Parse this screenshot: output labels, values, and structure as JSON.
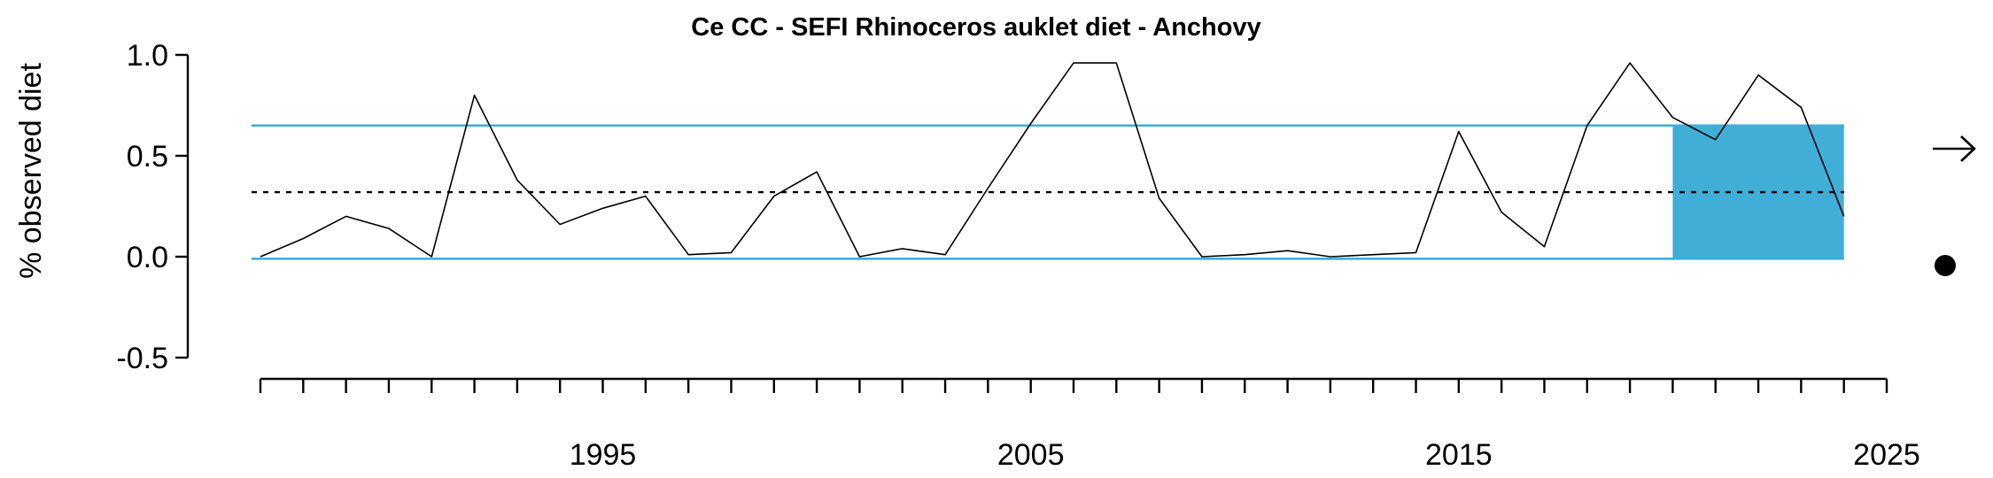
{
  "chart_data": {
    "type": "line",
    "title": "Ce CC - SEFI Rhinoceros auklet diet - Anchovy",
    "ylabel": "% observed diet",
    "xlabel": "",
    "ylim": [
      -0.5,
      1.0
    ],
    "xlim": [
      1987,
      2025
    ],
    "y_ticks": [
      1.0,
      0.5,
      0.0,
      -0.5
    ],
    "y_tick_labels": [
      "1.0",
      "0.5",
      "0.0",
      "-0.5"
    ],
    "x_major_ticks": [
      1995,
      2005,
      2015,
      2025
    ],
    "x_major_labels": [
      "1995",
      "2005",
      "2015",
      "2025"
    ],
    "x_minor_ticks": [
      1987,
      1988,
      1989,
      1990,
      1991,
      1992,
      1993,
      1994,
      1995,
      1996,
      1997,
      1998,
      1999,
      2000,
      2001,
      2002,
      2003,
      2004,
      2005,
      2006,
      2007,
      2008,
      2009,
      2010,
      2011,
      2012,
      2013,
      2014,
      2015,
      2016,
      2017,
      2018,
      2019,
      2020,
      2021,
      2022,
      2023,
      2024,
      2025
    ],
    "grid": false,
    "series": [
      {
        "color": "#000000",
        "x": [
          1987,
          1988,
          1989,
          1990,
          1991,
          1992,
          1993,
          1994,
          1995,
          1996,
          1997,
          1998,
          1999,
          2000,
          2001,
          2002,
          2003,
          2004,
          2005,
          2006,
          2007,
          2008,
          2009,
          2010,
          2011,
          2012,
          2013,
          2014,
          2015,
          2016,
          2017,
          2018,
          2019,
          2020,
          2021,
          2022,
          2023,
          2024
        ],
        "y": [
          0.0,
          0.09,
          0.2,
          0.14,
          0.0,
          0.8,
          0.38,
          0.16,
          0.24,
          0.3,
          0.01,
          0.02,
          0.3,
          0.42,
          0.0,
          0.04,
          0.01,
          0.34,
          0.66,
          0.96,
          0.96,
          0.29,
          0.0,
          0.01,
          0.03,
          0.0,
          0.01,
          0.02,
          0.62,
          0.22,
          0.05,
          0.65,
          0.96,
          0.69,
          0.58,
          0.9,
          0.74,
          0.2
        ]
      }
    ],
    "reference_lines": {
      "mean": 0.32,
      "upper": 0.65,
      "lower": -0.01,
      "mean_color": "#000000",
      "band_color": "#41aed8"
    },
    "highlight_region": {
      "x_start": 2020,
      "x_end": 2024,
      "y_min": -0.01,
      "y_max": 0.65,
      "color": "#41aed8"
    },
    "indicators": {
      "trend": "right-arrow",
      "mean_status": "filled-circle"
    }
  }
}
